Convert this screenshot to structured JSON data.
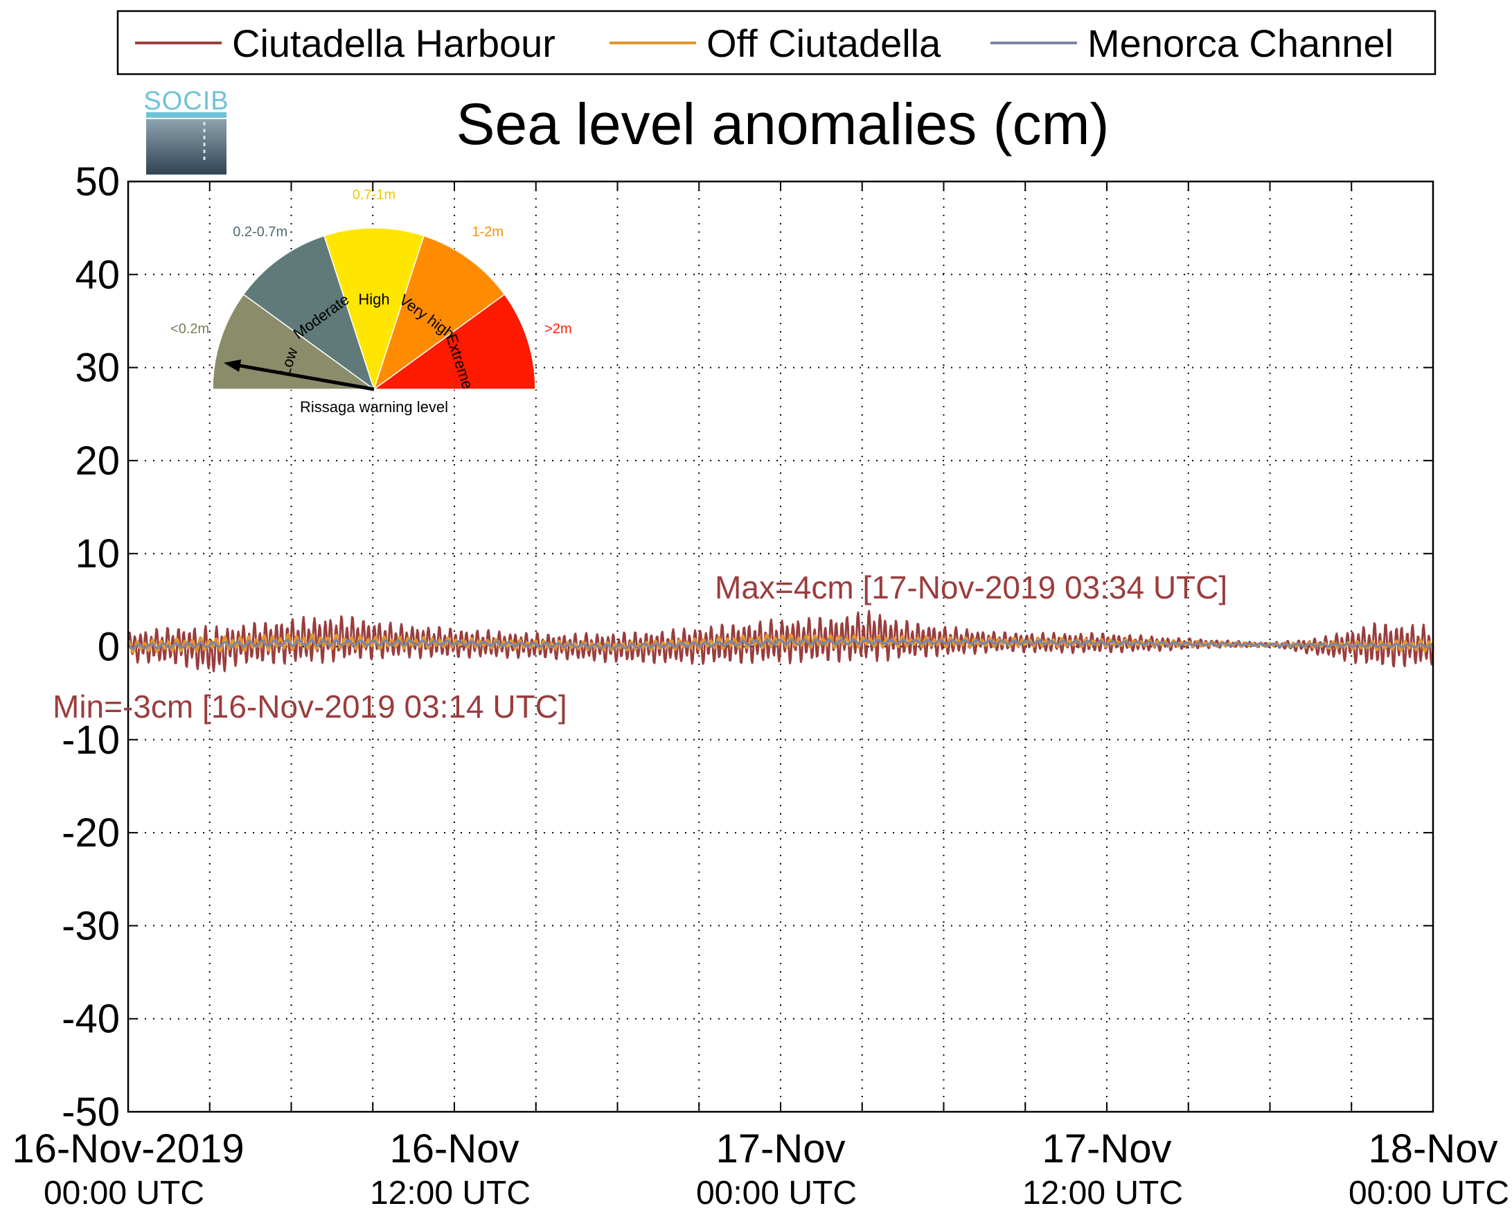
{
  "chart_data": {
    "type": "line",
    "title": "Sea level anomalies (cm)",
    "xlabel": "",
    "ylabel": "",
    "ylim": [
      -50,
      50
    ],
    "y_ticks": [
      50,
      40,
      30,
      20,
      10,
      0,
      -10,
      -20,
      -30,
      -40,
      -50
    ],
    "y_tick_labels": [
      "50",
      "40",
      "30",
      "20",
      "10",
      "0",
      "-10",
      "-20",
      "-30",
      "-40",
      "-50"
    ],
    "xlim": [
      "2019-11-16T00:00Z",
      "2019-11-18T00:00Z"
    ],
    "x_ticks": [
      {
        "date": "2019-11-16T00:00Z",
        "line1": "16-Nov-2019",
        "line2": "00:00 UTC"
      },
      {
        "date": "2019-11-16T12:00Z",
        "line1": "16-Nov",
        "line2": "12:00 UTC"
      },
      {
        "date": "2019-11-17T00:00Z",
        "line1": "17-Nov",
        "line2": "00:00 UTC"
      },
      {
        "date": "2019-11-17T12:00Z",
        "line1": "17-Nov",
        "line2": "12:00 UTC"
      },
      {
        "date": "2019-11-18T00:00Z",
        "line1": "18-Nov",
        "line2": "00:00 UTC"
      }
    ],
    "grid": true,
    "legend_position": "top",
    "series": [
      {
        "name": "Ciutadella Harbour",
        "color": "#9a3d3d",
        "x": [
          "2019-11-16T00:00Z",
          "2019-11-16T02:00Z",
          "2019-11-16T03:14Z",
          "2019-11-16T04:00Z",
          "2019-11-16T06:00Z",
          "2019-11-16T08:00Z",
          "2019-11-16T10:00Z",
          "2019-11-16T12:00Z",
          "2019-11-16T14:00Z",
          "2019-11-16T16:00Z",
          "2019-11-16T18:00Z",
          "2019-11-16T20:00Z",
          "2019-11-16T22:00Z",
          "2019-11-17T00:00Z",
          "2019-11-17T02:00Z",
          "2019-11-17T03:34Z",
          "2019-11-17T04:00Z",
          "2019-11-17T06:00Z",
          "2019-11-17T08:00Z",
          "2019-11-17T10:00Z",
          "2019-11-17T12:00Z",
          "2019-11-17T14:00Z",
          "2019-11-17T16:00Z",
          "2019-11-17T18:00Z",
          "2019-11-17T20:00Z",
          "2019-11-17T22:00Z",
          "2019-11-18T00:00Z"
        ],
        "mean": [
          0,
          0.1,
          -0.5,
          0.2,
          0.6,
          0.9,
          0.6,
          0.4,
          0.2,
          0.0,
          -0.1,
          0.0,
          0.3,
          0.6,
          0.8,
          1.2,
          0.8,
          0.6,
          0.5,
          0.4,
          0.4,
          0.3,
          0.3,
          0.2,
          0.0,
          0.2,
          0.1
        ],
        "amplitude": [
          1.5,
          2.0,
          2.5,
          2.0,
          2.3,
          2.3,
          1.7,
          1.5,
          1.3,
          1.3,
          1.5,
          1.7,
          2.0,
          2.2,
          2.3,
          2.6,
          2.1,
          1.5,
          1.0,
          1.0,
          1.0,
          0.7,
          0.4,
          0.2,
          1.0,
          2.3,
          2.0
        ]
      },
      {
        "name": "Off Ciutadella",
        "color": "#e3962a",
        "x": [
          "2019-11-16T00:00Z",
          "2019-11-16T06:00Z",
          "2019-11-16T12:00Z",
          "2019-11-16T18:00Z",
          "2019-11-17T00:00Z",
          "2019-11-17T06:00Z",
          "2019-11-17T12:00Z",
          "2019-11-17T18:00Z",
          "2019-11-18T00:00Z"
        ],
        "mean": [
          0,
          0.5,
          0.4,
          0.0,
          0.6,
          0.5,
          0.4,
          0.2,
          0.1
        ],
        "amplitude": [
          0.6,
          0.8,
          0.5,
          0.4,
          0.7,
          0.5,
          0.4,
          0.2,
          0.6
        ]
      },
      {
        "name": "Menorca Channel",
        "color": "#7d86a3",
        "x": [
          "2019-11-16T00:00Z",
          "2019-11-16T06:00Z",
          "2019-11-16T12:00Z",
          "2019-11-16T18:00Z",
          "2019-11-17T00:00Z",
          "2019-11-17T06:00Z",
          "2019-11-17T12:00Z",
          "2019-11-17T18:00Z",
          "2019-11-18T00:00Z"
        ],
        "mean": [
          0,
          0.4,
          0.4,
          0.0,
          0.5,
          0.5,
          0.4,
          0.2,
          0.1
        ],
        "amplitude": [
          0.3,
          0.4,
          0.3,
          0.3,
          0.4,
          0.3,
          0.3,
          0.2,
          0.3
        ]
      }
    ],
    "annotations": [
      {
        "text": "Max=4cm [17-Nov-2019 03:34 UTC]",
        "date": "2019-11-17T03:34Z",
        "value": 4,
        "color": "#9a3d3d"
      },
      {
        "text": "Min=-3cm [16-Nov-2019 03:14 UTC]",
        "date": "2019-11-16T03:14Z",
        "value": -3,
        "color": "#9a3d3d"
      }
    ]
  },
  "logo": {
    "text": "SOCIB"
  },
  "gauge": {
    "caption": "Rissaga warning level",
    "level": "Low",
    "segments": [
      {
        "label": "Low",
        "range": "<0.2m",
        "color": "#8b8c6a",
        "range_color": "#7d7a55"
      },
      {
        "label": "Moderate",
        "range": "0.2-0.7m",
        "color": "#5f7a78",
        "range_color": "#4f6b72"
      },
      {
        "label": "High",
        "range": "0.7-1m",
        "color": "#ffe600",
        "range_color": "#e8c900"
      },
      {
        "label": "Very high",
        "range": "1-2m",
        "color": "#ff8c00",
        "range_color": "#ff8c00"
      },
      {
        "label": "Extreme",
        "range": ">2m",
        "color": "#ff1a00",
        "range_color": "#ff1a00"
      }
    ]
  }
}
